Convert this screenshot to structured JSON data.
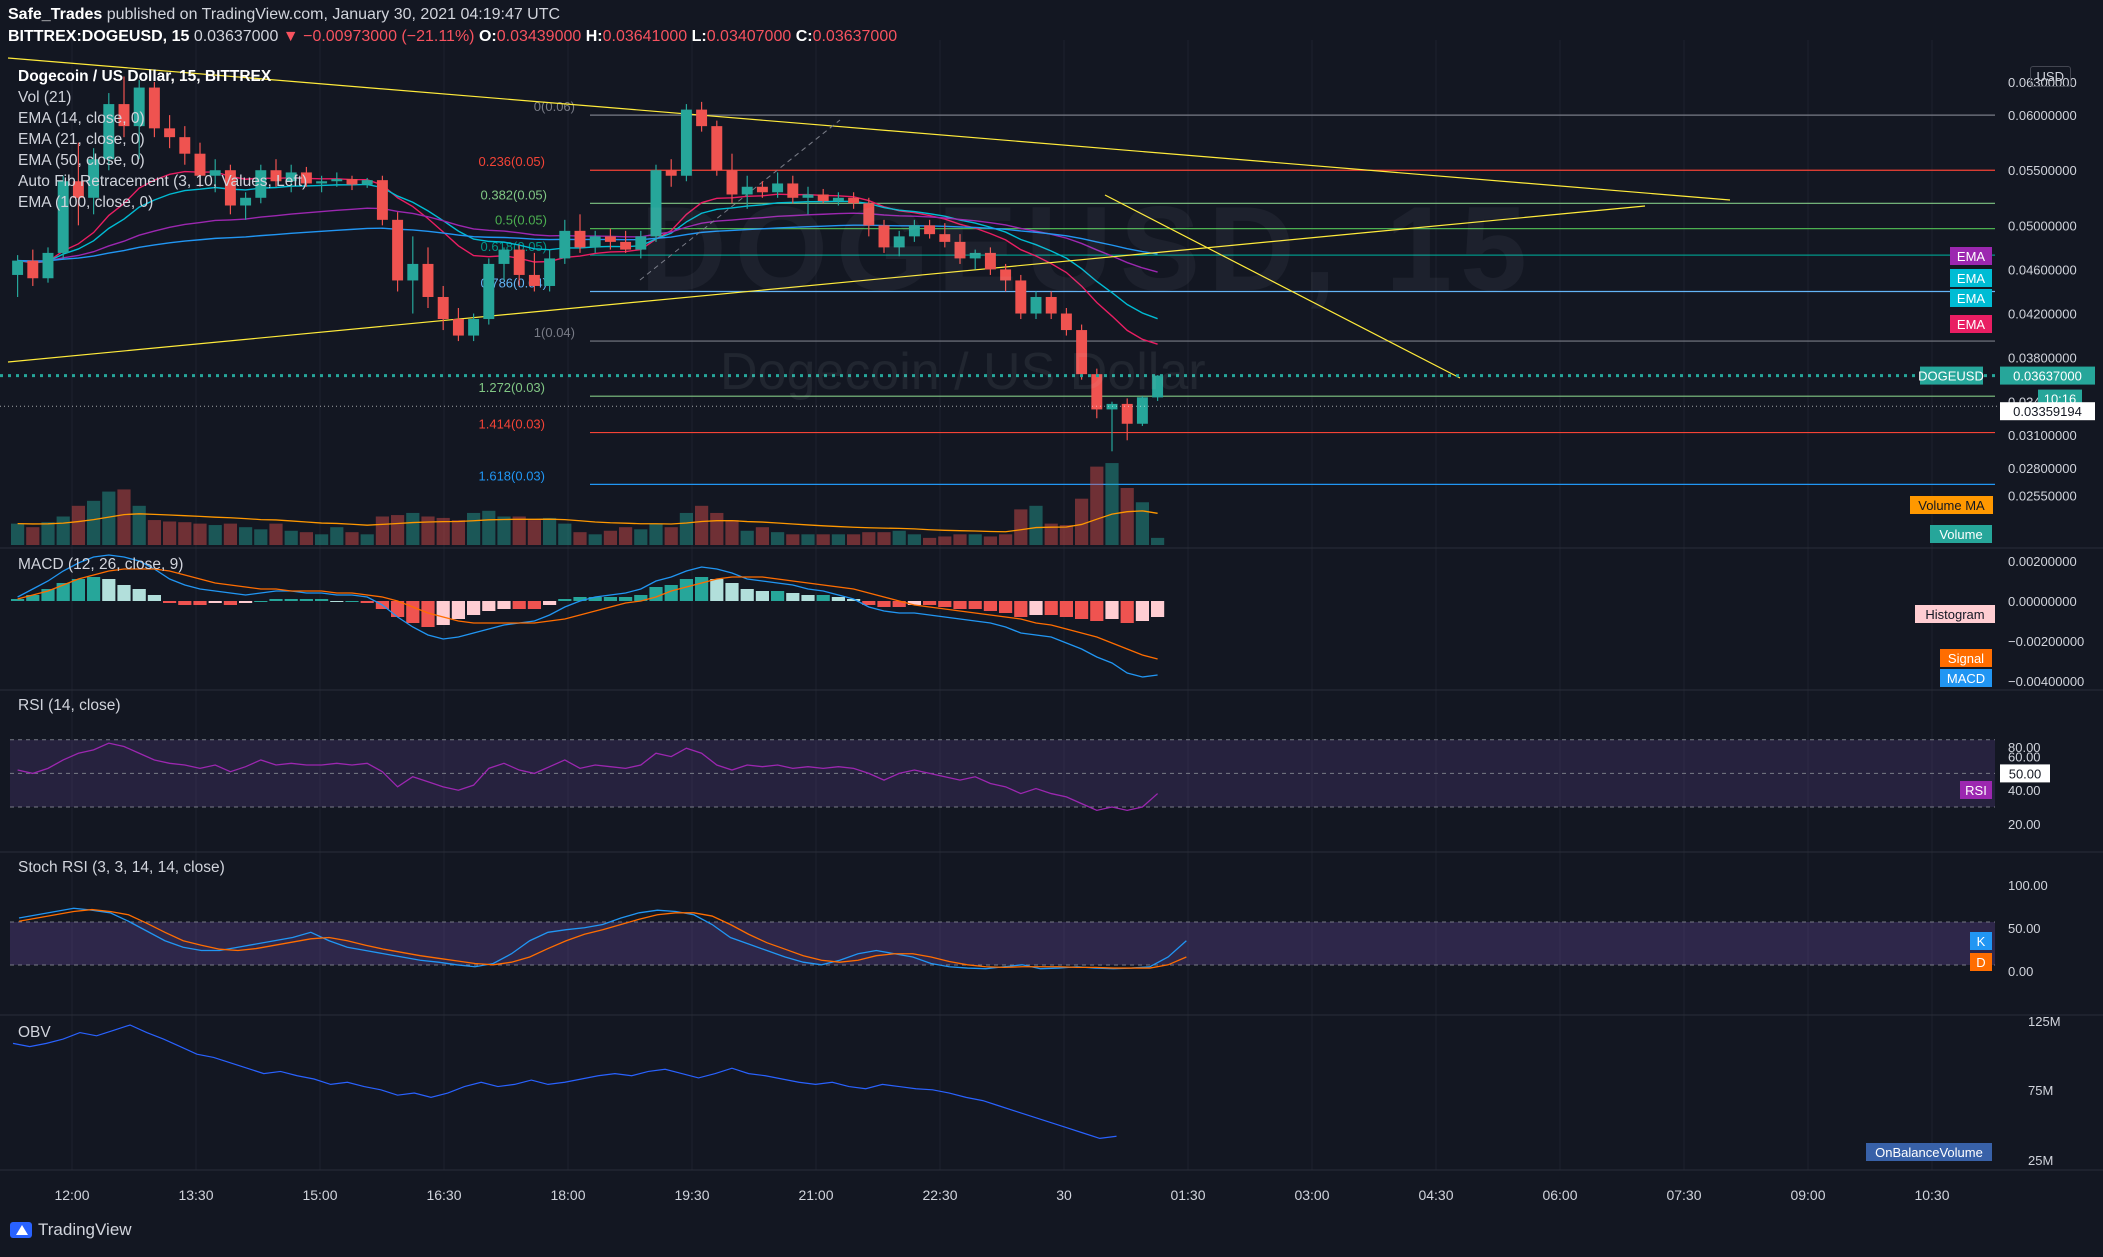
{
  "header": {
    "author": "Safe_Trades",
    "published": "published on TradingView.com, January 30, 2021 04:19:47 UTC",
    "symbol_line": "BITTREX:DOGEUSD, 15",
    "last": "0.03637000",
    "change": "−0.00973000 (−21.11%)",
    "o_label": "O:",
    "o": "0.03439000",
    "h_label": "H:",
    "h": "0.03641000",
    "l_label": "L:",
    "l": "0.03407000",
    "c_label": "C:",
    "c": "0.03637000"
  },
  "legend": {
    "title": "Dogecoin / US Dollar, 15, BITTREX",
    "items": [
      "Vol (21)",
      "EMA (14, close, 0)",
      "EMA (21, close, 0)",
      "EMA (50, close, 0)",
      "Auto Fib Retracement (3, 10, Values, Left)",
      "EMA (100, close, 0)"
    ]
  },
  "currency": "USD",
  "watermark": {
    "symbol": "DOGEUSD, 15",
    "name": "Dogecoin / US Dollar"
  },
  "panes": {
    "macd": "MACD (12, 26, close, 9)",
    "rsi": "RSI (14, close)",
    "stoch": "Stoch RSI (3, 3, 14, 14, close)",
    "obv": "OBV"
  },
  "colors": {
    "bg": "#131722",
    "up": "#26a69a",
    "down": "#ef5350",
    "grid": "#2a2e39",
    "ema14": "#e91e63",
    "ema21": "#00bcd4",
    "ema50": "#9c27b0",
    "ema100": "#2196f3",
    "trend": "#ffeb3b",
    "price_line": "#26a69a",
    "macd": "#2196f3",
    "signal": "#ff6d00",
    "rsi": "#9c27b0",
    "stoch_k": "#2196f3",
    "stoch_d": "#ff6d00",
    "obv": "#2962ff",
    "axis_text": "#d1d4dc"
  },
  "price_axis": {
    "ticks": [
      "0.06000000",
      "0.05500000",
      "0.05000000",
      "0.04600000",
      "0.04200000",
      "0.03800000",
      "0.03400000",
      "0.03100000",
      "0.02800000",
      "0.02550000",
      "0.06300000"
    ]
  },
  "price_labels": [
    {
      "text": "DOGEUSD",
      "value": "0.03637000",
      "color": "#26a69a"
    },
    {
      "text": "10:16",
      "color": "#26a69a"
    },
    {
      "text": "0.03359194",
      "color": "#ffffff"
    },
    {
      "text": "EMA",
      "color": "#9c27b0"
    },
    {
      "text": "EMA",
      "color": "#00bcd4"
    },
    {
      "text": "EMA",
      "color": "#00bcd4"
    },
    {
      "text": "EMA",
      "color": "#e91e63"
    },
    {
      "text": "Volume MA",
      "color": "#ff9800"
    },
    {
      "text": "Volume",
      "color": "#26a69a"
    }
  ],
  "fib_levels": [
    {
      "label": "0(0.06)",
      "color": "#787b86"
    },
    {
      "label": "0.236(0.05)",
      "color": "#f44336"
    },
    {
      "label": "0.382(0.05)",
      "color": "#81c784"
    },
    {
      "label": "0.5(0.05)",
      "color": "#4caf50"
    },
    {
      "label": "0.618(0.05)",
      "color": "#009688"
    },
    {
      "label": "0.786(0.04)",
      "color": "#64b5f6"
    },
    {
      "label": "1(0.04)",
      "color": "#787b86"
    },
    {
      "label": "1.272(0.03)",
      "color": "#81c784"
    },
    {
      "label": "1.414(0.03)",
      "color": "#f44336"
    },
    {
      "label": "1.618(0.03)",
      "color": "#2196f3"
    }
  ],
  "macd_axis": {
    "ticks": [
      "0.00200000",
      "0.00000000",
      "−0.00200000",
      "−0.00400000"
    ],
    "labels": [
      {
        "text": "Histogram",
        "color": "#ffcdd2"
      },
      {
        "text": "Signal",
        "color": "#ff6d00"
      },
      {
        "text": "MACD",
        "color": "#2196f3"
      }
    ]
  },
  "rsi_axis": {
    "ticks": [
      "80.00",
      "60.00",
      "50.00",
      "40.00",
      "20.00"
    ],
    "label": {
      "text": "RSI",
      "color": "#9c27b0"
    }
  },
  "stoch_axis": {
    "ticks": [
      "100.00",
      "50.00",
      "0.00"
    ],
    "labels": [
      {
        "text": "K",
        "color": "#2196f3"
      },
      {
        "text": "D",
        "color": "#ff6d00"
      }
    ]
  },
  "obv_axis": {
    "ticks": [
      "125M",
      "75M",
      "25M"
    ],
    "label": {
      "text": "OnBalanceVolume",
      "color": "#2962ff"
    }
  },
  "time_axis": {
    "ticks": [
      "12:00",
      "13:30",
      "15:00",
      "16:30",
      "18:00",
      "19:30",
      "21:00",
      "22:30",
      "30",
      "01:30",
      "03:00",
      "04:30",
      "06:00",
      "07:30",
      "09:00",
      "10:30"
    ]
  },
  "brand": "TradingView",
  "chart_data": {
    "type": "candlestick",
    "title": "Dogecoin / US Dollar, 15, BITTREX",
    "interval_minutes": 15,
    "candles": [
      {
        "o": 0.0455,
        "h": 0.0473,
        "l": 0.0435,
        "c": 0.0468
      },
      {
        "o": 0.0468,
        "h": 0.0478,
        "l": 0.0445,
        "c": 0.0452
      },
      {
        "o": 0.0452,
        "h": 0.048,
        "l": 0.0448,
        "c": 0.0475
      },
      {
        "o": 0.0475,
        "h": 0.0545,
        "l": 0.047,
        "c": 0.054
      },
      {
        "o": 0.054,
        "h": 0.0575,
        "l": 0.05,
        "c": 0.0525
      },
      {
        "o": 0.0525,
        "h": 0.057,
        "l": 0.051,
        "c": 0.056
      },
      {
        "o": 0.056,
        "h": 0.062,
        "l": 0.055,
        "c": 0.061
      },
      {
        "o": 0.061,
        "h": 0.0635,
        "l": 0.058,
        "c": 0.059
      },
      {
        "o": 0.059,
        "h": 0.0632,
        "l": 0.056,
        "c": 0.0625
      },
      {
        "o": 0.0625,
        "h": 0.063,
        "l": 0.058,
        "c": 0.0588
      },
      {
        "o": 0.0588,
        "h": 0.06,
        "l": 0.057,
        "c": 0.058
      },
      {
        "o": 0.058,
        "h": 0.059,
        "l": 0.0555,
        "c": 0.0565
      },
      {
        "o": 0.0565,
        "h": 0.0575,
        "l": 0.0535,
        "c": 0.0545
      },
      {
        "o": 0.0545,
        "h": 0.056,
        "l": 0.053,
        "c": 0.055
      },
      {
        "o": 0.055,
        "h": 0.0555,
        "l": 0.051,
        "c": 0.0518
      },
      {
        "o": 0.0518,
        "h": 0.053,
        "l": 0.0505,
        "c": 0.0525
      },
      {
        "o": 0.0525,
        "h": 0.0555,
        "l": 0.052,
        "c": 0.055
      },
      {
        "o": 0.055,
        "h": 0.056,
        "l": 0.0535,
        "c": 0.054
      },
      {
        "o": 0.054,
        "h": 0.0555,
        "l": 0.053,
        "c": 0.0548
      },
      {
        "o": 0.0548,
        "h": 0.0553,
        "l": 0.0535,
        "c": 0.0538
      },
      {
        "o": 0.0538,
        "h": 0.0545,
        "l": 0.053,
        "c": 0.054
      },
      {
        "o": 0.054,
        "h": 0.0548,
        "l": 0.0535,
        "c": 0.0542
      },
      {
        "o": 0.0542,
        "h": 0.0545,
        "l": 0.0532,
        "c": 0.0537
      },
      {
        "o": 0.0537,
        "h": 0.0543,
        "l": 0.0534,
        "c": 0.0541
      },
      {
        "o": 0.0541,
        "h": 0.0545,
        "l": 0.05,
        "c": 0.0505
      },
      {
        "o": 0.0505,
        "h": 0.0512,
        "l": 0.044,
        "c": 0.045
      },
      {
        "o": 0.045,
        "h": 0.049,
        "l": 0.042,
        "c": 0.0465
      },
      {
        "o": 0.0465,
        "h": 0.048,
        "l": 0.0425,
        "c": 0.0435
      },
      {
        "o": 0.0435,
        "h": 0.0445,
        "l": 0.0405,
        "c": 0.0415
      },
      {
        "o": 0.0415,
        "h": 0.0425,
        "l": 0.0395,
        "c": 0.04
      },
      {
        "o": 0.04,
        "h": 0.042,
        "l": 0.0395,
        "c": 0.0415
      },
      {
        "o": 0.0415,
        "h": 0.047,
        "l": 0.041,
        "c": 0.0465
      },
      {
        "o": 0.0465,
        "h": 0.048,
        "l": 0.045,
        "c": 0.0478
      },
      {
        "o": 0.0478,
        "h": 0.0482,
        "l": 0.0445,
        "c": 0.0455
      },
      {
        "o": 0.0455,
        "h": 0.0475,
        "l": 0.044,
        "c": 0.0445
      },
      {
        "o": 0.0445,
        "h": 0.0478,
        "l": 0.044,
        "c": 0.047
      },
      {
        "o": 0.047,
        "h": 0.0505,
        "l": 0.0465,
        "c": 0.0495
      },
      {
        "o": 0.0495,
        "h": 0.051,
        "l": 0.0475,
        "c": 0.048
      },
      {
        "o": 0.048,
        "h": 0.0495,
        "l": 0.0475,
        "c": 0.049
      },
      {
        "o": 0.049,
        "h": 0.0497,
        "l": 0.0478,
        "c": 0.0485
      },
      {
        "o": 0.0485,
        "h": 0.0495,
        "l": 0.0475,
        "c": 0.0478
      },
      {
        "o": 0.0478,
        "h": 0.0495,
        "l": 0.047,
        "c": 0.049
      },
      {
        "o": 0.049,
        "h": 0.0555,
        "l": 0.0485,
        "c": 0.055
      },
      {
        "o": 0.055,
        "h": 0.056,
        "l": 0.0535,
        "c": 0.0545
      },
      {
        "o": 0.0545,
        "h": 0.061,
        "l": 0.054,
        "c": 0.0605
      },
      {
        "o": 0.0605,
        "h": 0.0612,
        "l": 0.0585,
        "c": 0.059
      },
      {
        "o": 0.059,
        "h": 0.0595,
        "l": 0.0545,
        "c": 0.055
      },
      {
        "o": 0.055,
        "h": 0.0565,
        "l": 0.052,
        "c": 0.0528
      },
      {
        "o": 0.0528,
        "h": 0.0545,
        "l": 0.0515,
        "c": 0.0535
      },
      {
        "o": 0.0535,
        "h": 0.054,
        "l": 0.0525,
        "c": 0.053
      },
      {
        "o": 0.053,
        "h": 0.0548,
        "l": 0.0525,
        "c": 0.0538
      },
      {
        "o": 0.0538,
        "h": 0.0545,
        "l": 0.052,
        "c": 0.0525
      },
      {
        "o": 0.0525,
        "h": 0.0535,
        "l": 0.051,
        "c": 0.0528
      },
      {
        "o": 0.0528,
        "h": 0.0533,
        "l": 0.052,
        "c": 0.0522
      },
      {
        "o": 0.0522,
        "h": 0.053,
        "l": 0.0518,
        "c": 0.0525
      },
      {
        "o": 0.0525,
        "h": 0.053,
        "l": 0.0515,
        "c": 0.052
      },
      {
        "o": 0.052,
        "h": 0.0525,
        "l": 0.049,
        "c": 0.05
      },
      {
        "o": 0.05,
        "h": 0.0505,
        "l": 0.0475,
        "c": 0.048
      },
      {
        "o": 0.048,
        "h": 0.0495,
        "l": 0.0472,
        "c": 0.049
      },
      {
        "o": 0.049,
        "h": 0.0505,
        "l": 0.0485,
        "c": 0.05
      },
      {
        "o": 0.05,
        "h": 0.0505,
        "l": 0.0488,
        "c": 0.0492
      },
      {
        "o": 0.0492,
        "h": 0.0502,
        "l": 0.048,
        "c": 0.0485
      },
      {
        "o": 0.0485,
        "h": 0.0492,
        "l": 0.0465,
        "c": 0.047
      },
      {
        "o": 0.047,
        "h": 0.0478,
        "l": 0.046,
        "c": 0.0475
      },
      {
        "o": 0.0475,
        "h": 0.048,
        "l": 0.0455,
        "c": 0.046
      },
      {
        "o": 0.046,
        "h": 0.0465,
        "l": 0.044,
        "c": 0.045
      },
      {
        "o": 0.045,
        "h": 0.0455,
        "l": 0.0415,
        "c": 0.042
      },
      {
        "o": 0.042,
        "h": 0.044,
        "l": 0.0415,
        "c": 0.0435
      },
      {
        "o": 0.0435,
        "h": 0.044,
        "l": 0.0415,
        "c": 0.042
      },
      {
        "o": 0.042,
        "h": 0.0425,
        "l": 0.04,
        "c": 0.0405
      },
      {
        "o": 0.0405,
        "h": 0.041,
        "l": 0.036,
        "c": 0.0365
      },
      {
        "o": 0.0365,
        "h": 0.037,
        "l": 0.0325,
        "c": 0.0333
      },
      {
        "o": 0.0333,
        "h": 0.034,
        "l": 0.0295,
        "c": 0.0338
      },
      {
        "o": 0.0338,
        "h": 0.0343,
        "l": 0.0305,
        "c": 0.032
      },
      {
        "o": 0.032,
        "h": 0.0345,
        "l": 0.0318,
        "c": 0.0344
      },
      {
        "o": 0.03439,
        "h": 0.03641,
        "l": 0.03407,
        "c": 0.03637
      }
    ],
    "price_range": [
      0.021,
      0.065
    ],
    "fib_values": [
      0.06,
      0.055,
      0.052,
      0.0497,
      0.0473,
      0.044,
      0.0395,
      0.0345,
      0.0312,
      0.0265
    ],
    "volume": [
      0.3,
      0.25,
      0.32,
      0.4,
      0.55,
      0.62,
      0.75,
      0.78,
      0.55,
      0.35,
      0.33,
      0.32,
      0.3,
      0.28,
      0.3,
      0.25,
      0.22,
      0.3,
      0.2,
      0.18,
      0.15,
      0.25,
      0.18,
      0.15,
      0.4,
      0.42,
      0.45,
      0.4,
      0.38,
      0.35,
      0.45,
      0.48,
      0.4,
      0.4,
      0.35,
      0.38,
      0.3,
      0.18,
      0.15,
      0.2,
      0.25,
      0.22,
      0.3,
      0.25,
      0.45,
      0.55,
      0.45,
      0.35,
      0.2,
      0.25,
      0.18,
      0.15,
      0.15,
      0.15,
      0.15,
      0.15,
      0.18,
      0.18,
      0.2,
      0.15,
      0.1,
      0.12,
      0.15,
      0.15,
      0.12,
      0.15,
      0.5,
      0.55,
      0.3,
      0.28,
      0.65,
      1.1,
      1.15,
      0.8,
      0.6,
      0.1
    ],
    "macd_hist": [
      0.0001,
      0.0003,
      0.0006,
      0.0009,
      0.0011,
      0.0012,
      0.0011,
      0.0008,
      0.0006,
      0.0003,
      -0.0001,
      -0.0002,
      -0.0002,
      -0.0001,
      -0.0002,
      -0.0001,
      0.0,
      0.0001,
      0.0001,
      0.0001,
      0.0001,
      0.0,
      0.0,
      -0.0001,
      -0.0004,
      -0.0008,
      -0.0011,
      -0.0013,
      -0.0012,
      -0.0009,
      -0.0007,
      -0.0005,
      -0.0004,
      -0.0004,
      -0.0004,
      -0.0002,
      0.0001,
      0.0002,
      0.0002,
      0.0002,
      0.0002,
      0.0003,
      0.0007,
      0.0008,
      0.0011,
      0.0012,
      0.0011,
      0.0009,
      0.0006,
      0.0005,
      0.0005,
      0.0004,
      0.0003,
      0.0003,
      0.0002,
      0.0001,
      -0.0002,
      -0.0003,
      -0.0003,
      -0.0002,
      -0.0002,
      -0.0003,
      -0.0004,
      -0.0004,
      -0.0005,
      -0.0006,
      -0.0008,
      -0.0007,
      -0.0007,
      -0.0008,
      -0.0009,
      -0.001,
      -0.0009,
      -0.0011,
      -0.001,
      -0.0008
    ],
    "macd": [
      0.0002,
      0.0006,
      0.001,
      0.0015,
      0.0019,
      0.0022,
      0.0023,
      0.0022,
      0.002,
      0.0016,
      0.0011,
      0.0008,
      0.0006,
      0.0005,
      0.0004,
      0.0003,
      0.0004,
      0.0005,
      0.0005,
      0.0004,
      0.0004,
      0.0003,
      0.0003,
      0.0002,
      -0.0002,
      -0.0008,
      -0.0013,
      -0.0017,
      -0.0019,
      -0.0018,
      -0.0016,
      -0.0014,
      -0.0012,
      -0.0011,
      -0.001,
      -0.0007,
      -0.0003,
      0.0,
      0.0002,
      0.0003,
      0.0004,
      0.0006,
      0.001,
      0.0012,
      0.0015,
      0.0017,
      0.0016,
      0.0014,
      0.0011,
      0.001,
      0.0009,
      0.0008,
      0.0006,
      0.0005,
      0.0003,
      0.0001,
      -0.0003,
      -0.0005,
      -0.0006,
      -0.0006,
      -0.0007,
      -0.0008,
      -0.0009,
      -0.001,
      -0.0011,
      -0.0013,
      -0.0016,
      -0.0017,
      -0.0018,
      -0.0021,
      -0.0024,
      -0.0028,
      -0.0031,
      -0.0036,
      -0.0038,
      -0.0037
    ],
    "macd_signal": [
      0.0001,
      0.0003,
      0.0005,
      0.0008,
      0.0011,
      0.0013,
      0.0015,
      0.0016,
      0.0016,
      0.0016,
      0.0015,
      0.0013,
      0.0011,
      0.0009,
      0.0008,
      0.0007,
      0.0006,
      0.0006,
      0.0005,
      0.0005,
      0.0005,
      0.0004,
      0.0004,
      0.0003,
      0.0002,
      0.0,
      -0.0003,
      -0.0006,
      -0.0008,
      -0.001,
      -0.0011,
      -0.0011,
      -0.0011,
      -0.0011,
      -0.0011,
      -0.001,
      -0.0009,
      -0.0007,
      -0.0005,
      -0.0003,
      -0.0001,
      0.0,
      0.0002,
      0.0005,
      0.0007,
      0.0009,
      0.0011,
      0.0012,
      0.0012,
      0.0012,
      0.0011,
      0.001,
      0.0009,
      0.0008,
      0.0007,
      0.0006,
      0.0004,
      0.0002,
      0.0,
      -0.0002,
      -0.0003,
      -0.0004,
      -0.0005,
      -0.0006,
      -0.0007,
      -0.0008,
      -0.0009,
      -0.0011,
      -0.0012,
      -0.0014,
      -0.0016,
      -0.0018,
      -0.0021,
      -0.0024,
      -0.0027,
      -0.0029
    ],
    "rsi": [
      52,
      50,
      53,
      58,
      62,
      64,
      68,
      66,
      62,
      58,
      56,
      55,
      53,
      55,
      51,
      54,
      58,
      55,
      56,
      55,
      55,
      56,
      55,
      56,
      51,
      42,
      48,
      45,
      42,
      40,
      43,
      53,
      56,
      52,
      50,
      54,
      58,
      53,
      55,
      54,
      53,
      55,
      62,
      60,
      65,
      62,
      55,
      52,
      55,
      54,
      55,
      53,
      54,
      53,
      54,
      53,
      50,
      46,
      50,
      52,
      50,
      48,
      46,
      48,
      44,
      42,
      38,
      41,
      38,
      36,
      32,
      28,
      30,
      28,
      30,
      38
    ],
    "stoch_k": [
      80,
      85,
      90,
      95,
      92,
      88,
      75,
      60,
      45,
      35,
      30,
      30,
      35,
      40,
      45,
      50,
      58,
      45,
      35,
      30,
      25,
      20,
      15,
      12,
      8,
      5,
      10,
      25,
      45,
      58,
      62,
      65,
      70,
      80,
      88,
      92,
      90,
      85,
      70,
      50,
      40,
      30,
      20,
      12,
      8,
      15,
      25,
      30,
      25,
      20,
      10,
      5,
      3,
      2,
      5,
      8,
      2,
      3,
      5,
      3,
      2,
      3,
      5,
      20,
      45
    ],
    "stoch_d": [
      75,
      80,
      85,
      90,
      93,
      90,
      85,
      72,
      58,
      45,
      38,
      32,
      30,
      33,
      38,
      43,
      48,
      50,
      45,
      38,
      32,
      27,
      22,
      18,
      14,
      10,
      8,
      12,
      20,
      33,
      45,
      55,
      62,
      70,
      78,
      85,
      88,
      88,
      83,
      70,
      55,
      42,
      32,
      22,
      15,
      12,
      15,
      22,
      25,
      25,
      20,
      13,
      8,
      5,
      4,
      5,
      5,
      5,
      4,
      4,
      3,
      3,
      3,
      8,
      20
    ],
    "obv_m": [
      108,
      105,
      108,
      112,
      118,
      115,
      120,
      125,
      118,
      112,
      105,
      98,
      95,
      90,
      85,
      80,
      82,
      78,
      75,
      70,
      72,
      68,
      65,
      60,
      62,
      58,
      62,
      68,
      72,
      68,
      70,
      74,
      70,
      72,
      75,
      78,
      80,
      78,
      82,
      84,
      80,
      76,
      80,
      85,
      80,
      78,
      75,
      72,
      70,
      72,
      68,
      66,
      70,
      68,
      66,
      65,
      62,
      58,
      55,
      50,
      45,
      40,
      35,
      30,
      25,
      20,
      22
    ]
  }
}
